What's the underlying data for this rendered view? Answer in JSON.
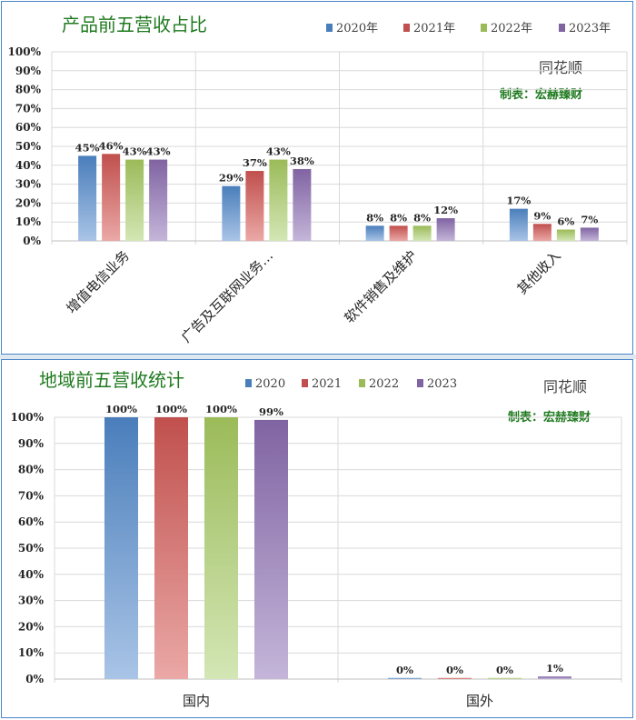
{
  "colors": {
    "series": [
      [
        "#4a7ebb",
        "#a9c4e6"
      ],
      [
        "#c0504d",
        "#eaa8a6"
      ],
      [
        "#9bbb59",
        "#d3e6b5"
      ],
      [
        "#8064a2",
        "#c4b5d9"
      ]
    ],
    "title_color": "#1f7a1f",
    "border": "#4a86c8"
  },
  "chart_data": [
    {
      "type": "bar",
      "title": "产品前五营收占比",
      "watermark": "同花顺",
      "maker": "制表：宏赫臻财",
      "categories": [
        "增值电信业务",
        "广告及互联网业务…",
        "软件销售及维护",
        "其他收入"
      ],
      "series": [
        {
          "name": "2020年",
          "values": [
            45,
            29,
            8,
            17
          ]
        },
        {
          "name": "2021年",
          "values": [
            46,
            37,
            8,
            9
          ]
        },
        {
          "name": "2022年",
          "values": [
            43,
            43,
            8,
            6
          ]
        },
        {
          "name": "2023年",
          "values": [
            43,
            38,
            12,
            7
          ]
        }
      ],
      "data_labels": [
        [
          "45%",
          "29%",
          "8%",
          "17%"
        ],
        [
          "46%",
          "37%",
          "8%",
          "9%"
        ],
        [
          "43%",
          "43%",
          "8%",
          "6%"
        ],
        [
          "43%",
          "38%",
          "12%",
          "7%"
        ]
      ],
      "ylim": [
        0,
        100
      ],
      "yticks": [
        "0%",
        "10%",
        "20%",
        "30%",
        "40%",
        "50%",
        "60%",
        "70%",
        "80%",
        "90%",
        "100%"
      ],
      "grid": true,
      "legend_position": "top-right",
      "xlabel": "",
      "ylabel": ""
    },
    {
      "type": "bar",
      "title": "地域前五营收统计",
      "watermark": "同花顺",
      "maker": "制表：宏赫臻财",
      "categories": [
        "国内",
        "国外"
      ],
      "series": [
        {
          "name": "2020",
          "values": [
            100,
            0
          ]
        },
        {
          "name": "2021",
          "values": [
            100,
            0
          ]
        },
        {
          "name": "2022",
          "values": [
            100,
            0
          ]
        },
        {
          "name": "2023",
          "values": [
            99,
            1
          ]
        }
      ],
      "data_labels": [
        [
          "100%",
          "0%"
        ],
        [
          "100%",
          "0%"
        ],
        [
          "100%",
          "0%"
        ],
        [
          "99%",
          "1%"
        ]
      ],
      "ylim": [
        0,
        100
      ],
      "yticks": [
        "0%",
        "10%",
        "20%",
        "30%",
        "40%",
        "50%",
        "60%",
        "70%",
        "80%",
        "90%",
        "100%"
      ],
      "grid": true,
      "legend_position": "top",
      "xlabel": "",
      "ylabel": ""
    }
  ]
}
